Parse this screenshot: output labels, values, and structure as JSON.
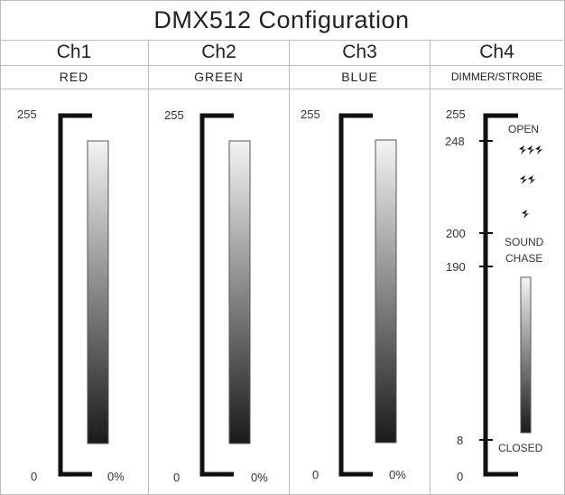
{
  "title": "DMX512 Configuration",
  "channels": [
    {
      "name": "Ch1",
      "function": "RED",
      "max_label": "255",
      "min_label": "0",
      "pct_label": "0%"
    },
    {
      "name": "Ch2",
      "function": "GREEN",
      "max_label": "255",
      "min_label": "0",
      "pct_label": "0%"
    },
    {
      "name": "Ch3",
      "function": "BLUE",
      "max_label": "255",
      "min_label": "0",
      "pct_label": "0%"
    },
    {
      "name": "Ch4",
      "function": "DIMMER/STROBE",
      "max_label": "255",
      "min_label": "0",
      "ticks": [
        "248",
        "200",
        "190",
        "8"
      ],
      "zones": {
        "open": "OPEN",
        "sound_chase_1": "SOUND",
        "sound_chase_2": "CHASE",
        "closed": "CLOSED"
      }
    }
  ],
  "colors": {
    "border": "#bdbdbd",
    "bracket": "#111111",
    "gradient_top": "#f4f4f4",
    "gradient_bottom": "#1a1a1a"
  }
}
